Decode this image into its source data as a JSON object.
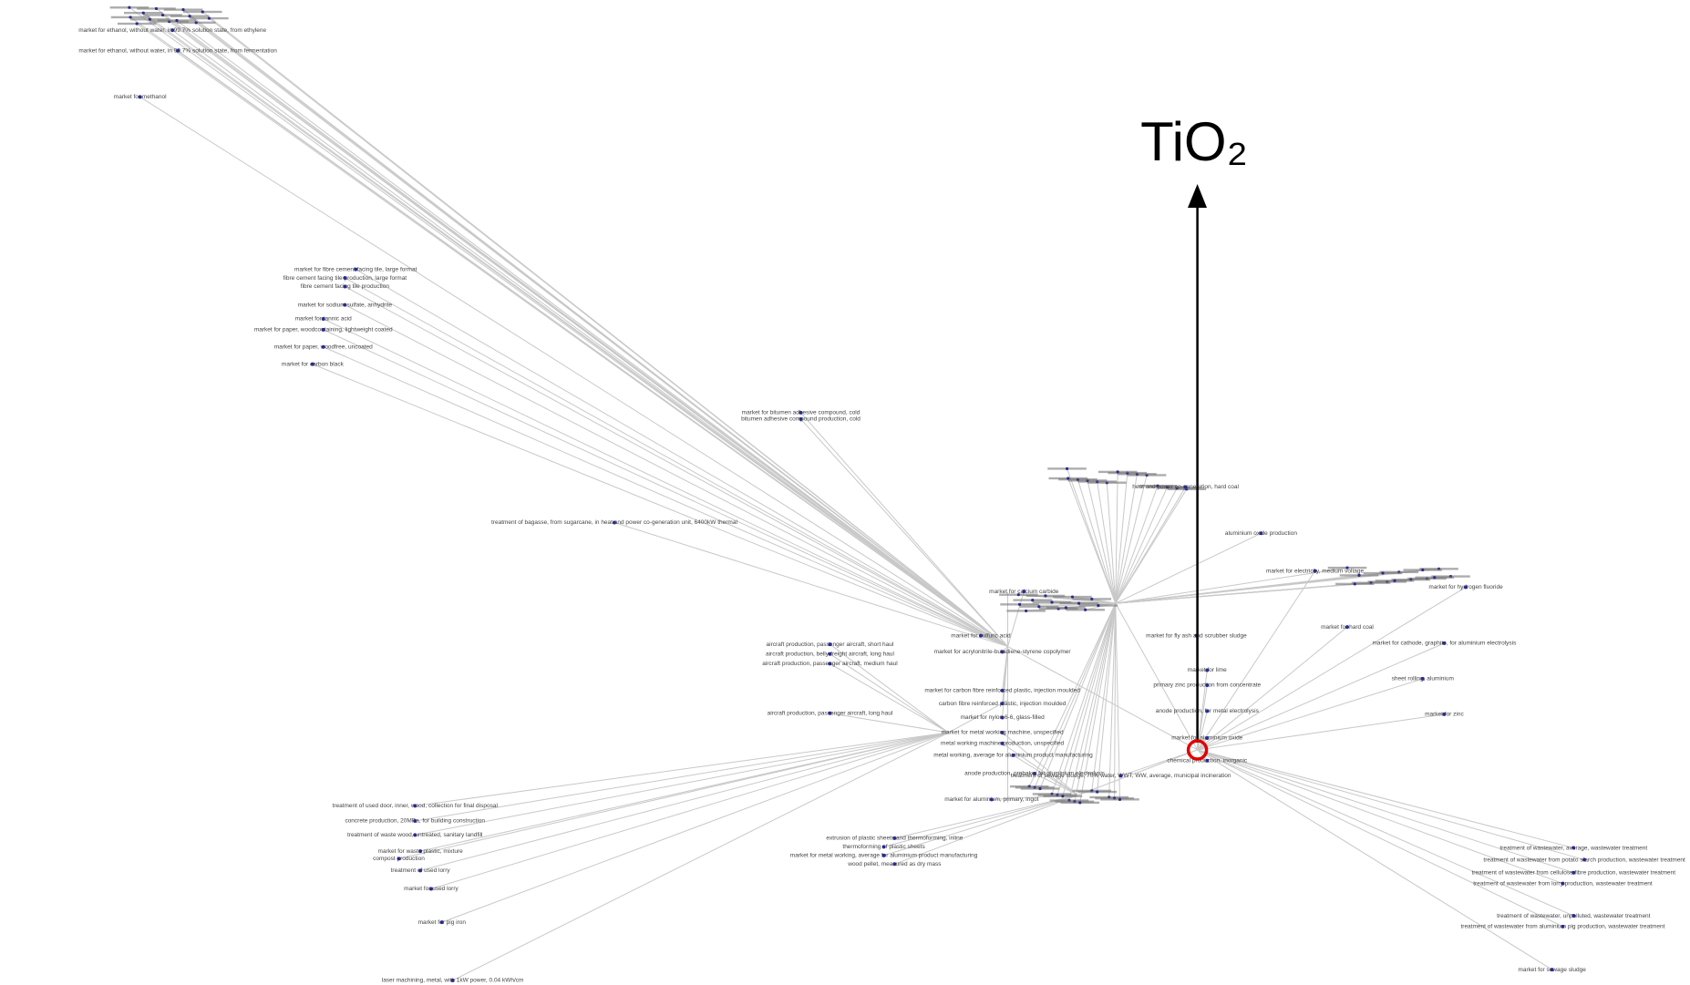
{
  "arrow_label": "TiO₂",
  "nodes": [
    {
      "label": "market for ethanol, without water, in 99.7% solution state, from fermentation"
    },
    {
      "label": "market for ethanol, without water, in 99.7% solution state, from ethylene"
    },
    {
      "label": "market for methanol"
    },
    {
      "label": "market for fibre cement facing tile, large format"
    },
    {
      "label": "fibre cement facing tile production, large format"
    },
    {
      "label": "fibre cement facing tile production"
    },
    {
      "label": "market for sodium sulfate, anhydrite"
    },
    {
      "label": "market for tannic acid"
    },
    {
      "label": "market for paper, woodcontaining, lightweight coated"
    },
    {
      "label": "market for paper, woodfree, uncoated"
    },
    {
      "label": "market for carbon black"
    },
    {
      "label": "market for bitumen adhesive compound, cold"
    },
    {
      "label": "bitumen adhesive compound production, cold"
    },
    {
      "label": "treatment of bagasse, from sugarcane, in heat and power co-generation unit, 6400kW thermal"
    },
    {
      "label": "market for calcium carbide"
    },
    {
      "label": "market for sulfuric acid"
    },
    {
      "label": "market for acrylonitrile-butadiene-styrene copolymer"
    },
    {
      "label": "aircraft production, passenger aircraft, short haul"
    },
    {
      "label": "aircraft production, belly-freight aircraft, long haul"
    },
    {
      "label": "aircraft production, passenger aircraft, medium haul"
    },
    {
      "label": "aircraft production, passenger aircraft, long haul"
    },
    {
      "label": "market for carbon fibre reinforced plastic, injection moulded"
    },
    {
      "label": "carbon fibre reinforced plastic, injection moulded"
    },
    {
      "label": "market for nylon 6-6, glass-filled"
    },
    {
      "label": "market for metal working machine, unspecified"
    },
    {
      "label": "metal working machine production, unspecified"
    },
    {
      "label": "metal working, average for aluminium product manufacturing"
    },
    {
      "label": "anode production, prebake, for aluminium electrolysis"
    },
    {
      "label": "market for aluminium, primary, ingot"
    },
    {
      "label": "treatment of sewage sludge, 70% water, WWT, WW, average, municipal incineration"
    },
    {
      "label": "market for fly ash and scrubber sludge"
    },
    {
      "label": "market for lime"
    },
    {
      "label": "primary zinc production from concentrate"
    },
    {
      "label": "anode production, for metal electrolysis"
    },
    {
      "label": "market for aluminium oxide"
    },
    {
      "label": "chemical production, inorganic"
    },
    {
      "label": "heat and power co-generation, hard coal"
    },
    {
      "label": "aluminium oxide production"
    },
    {
      "label": "market for electricity, medium voltage"
    },
    {
      "label": "market for hard coal"
    },
    {
      "label": "market for cathode, graphite, for aluminium electrolysis"
    },
    {
      "label": "sheet rolling, aluminium"
    },
    {
      "label": "market for zinc"
    },
    {
      "label": "market for hydrogen fluoride"
    },
    {
      "label": "treatment of used door, inner, wood, collection for final disposal"
    },
    {
      "label": "concrete production, 20MPa, for building construction"
    },
    {
      "label": "treatment of waste wood, untreated, sanitary landfill"
    },
    {
      "label": "market for waste plastic, mixture"
    },
    {
      "label": "compost production"
    },
    {
      "label": "treatment of used lorry"
    },
    {
      "label": "market for used lorry"
    },
    {
      "label": "market for pig iron"
    },
    {
      "label": "laser machining, metal, with 1kW power, 0.04 kWh/cm"
    },
    {
      "label": "extrusion of plastic sheets and thermoforming, inline"
    },
    {
      "label": "thermoforming of plastic sheets"
    },
    {
      "label": "market for metal working, average for aluminium product manufacturing"
    },
    {
      "label": "wood pellet, measured as dry mass"
    },
    {
      "label": "treatment of wastewater, average, wastewater treatment"
    },
    {
      "label": "treatment of wastewater from potato starch production, wastewater treatment"
    },
    {
      "label": "treatment of wastewater from cellulose fibre production, wastewater treatment"
    },
    {
      "label": "treatment of wastewater from lorry production, wastewater treatment"
    },
    {
      "label": "treatment of wastewater, unpolluted, wastewater treatment"
    },
    {
      "label": "treatment of wastewater from aluminium pig production, wastewater treatment"
    },
    {
      "label": "market for sewage sludge"
    }
  ]
}
